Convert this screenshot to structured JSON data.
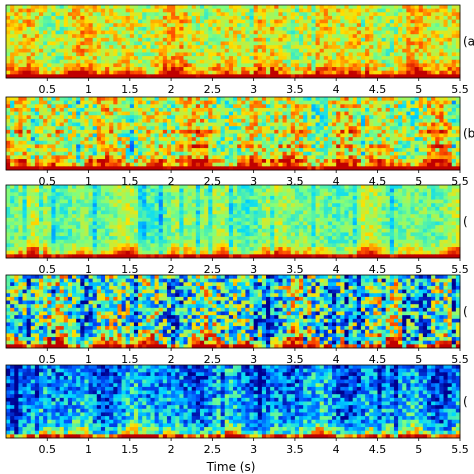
{
  "chart_data": {
    "type": "heatmap",
    "colormap": [
      "#00008f",
      "#0050ff",
      "#00d8ff",
      "#7fff7f",
      "#ffe000",
      "#ff5000",
      "#c00000"
    ],
    "xlabel": "Time (s)",
    "xlim": [
      0,
      5.5
    ],
    "x_ticks": [
      0.5,
      1,
      1.5,
      2,
      2.5,
      3,
      3.5,
      4,
      4.5,
      5,
      5.5
    ],
    "x_tick_labels": [
      "0.5",
      "1",
      "1.5",
      "2",
      "2.5",
      "3",
      "3.5",
      "4",
      "4.5",
      "5",
      "5.5"
    ],
    "panels": [
      {
        "label": "(a",
        "style": "clean",
        "low_intensity": 0.55,
        "background": 0.62,
        "noise": 0.16
      },
      {
        "label": "(b",
        "style": "harmonic",
        "low_intensity": 0.6,
        "background": 0.58,
        "noise": 0.22
      },
      {
        "label": "(",
        "style": "flat",
        "low_intensity": 0.6,
        "background": 0.5,
        "noise": 0.1
      },
      {
        "label": "(",
        "style": "patchy",
        "low_intensity": 0.6,
        "background": 0.42,
        "noise": 0.34
      },
      {
        "label": "(",
        "style": "smooth",
        "low_intensity": 0.55,
        "background": 0.32,
        "noise": 0.2
      }
    ]
  }
}
